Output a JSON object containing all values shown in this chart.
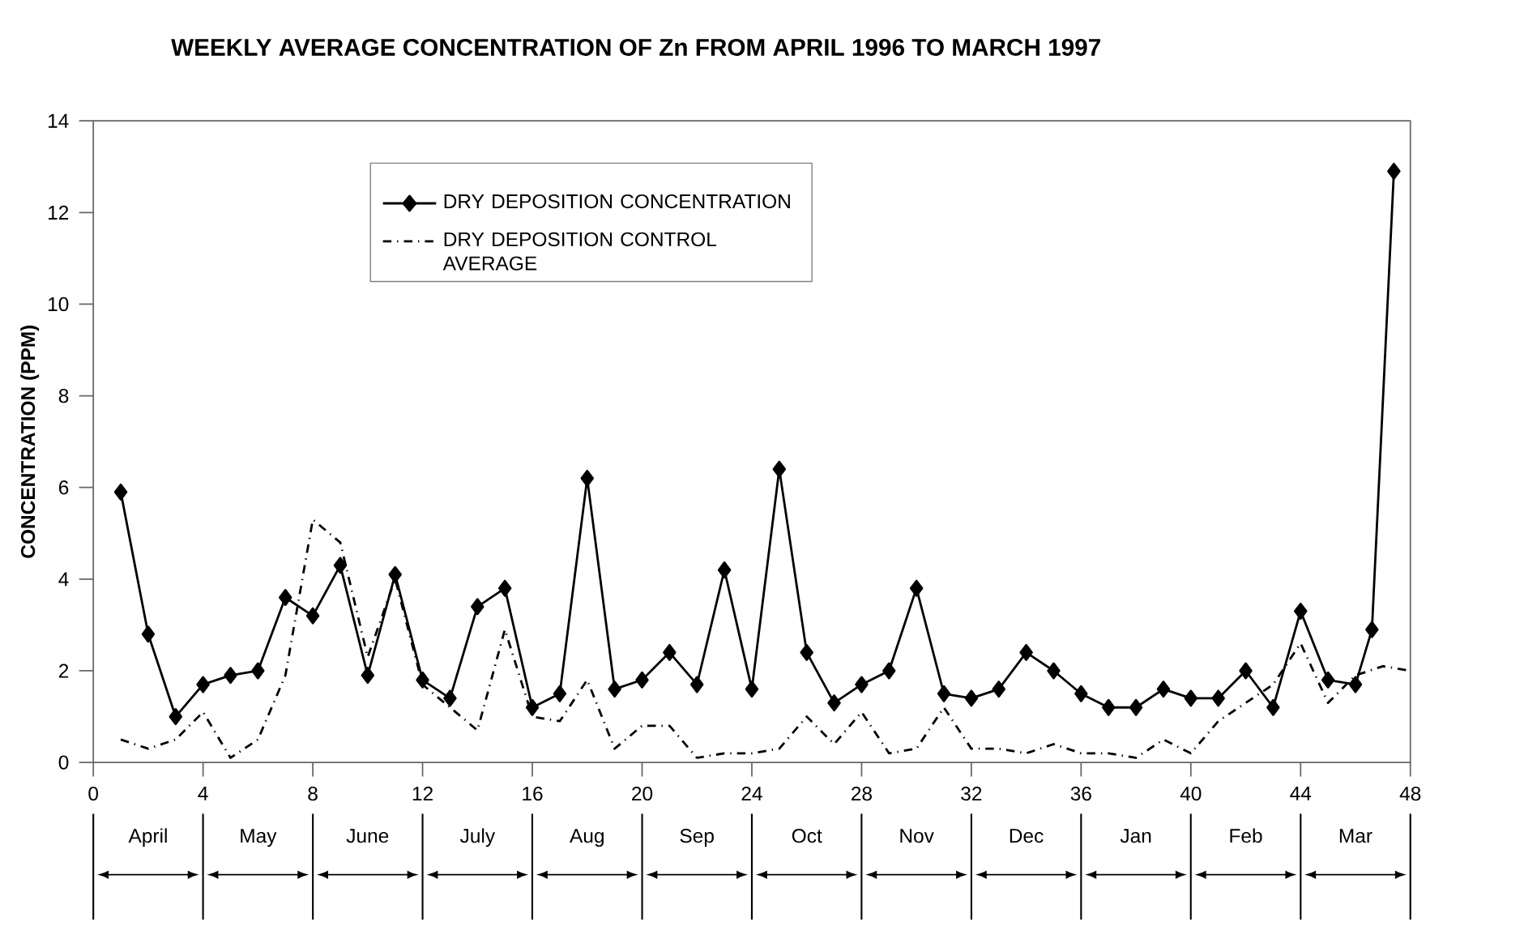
{
  "chart_data": {
    "type": "line",
    "title": "WEEKLY AVERAGE CONCENTRATION OF Zn FROM APRIL 1996 TO MARCH 1997",
    "ylabel": "CONCENTRATION (PPM)",
    "xlim": [
      0,
      48
    ],
    "xticks": [
      0,
      4,
      8,
      12,
      16,
      20,
      24,
      28,
      32,
      36,
      40,
      44,
      48
    ],
    "ylim": [
      0,
      14
    ],
    "yticks": [
      0,
      2,
      4,
      6,
      8,
      10,
      12,
      14
    ],
    "legend": "top",
    "grid": false,
    "series": [
      {
        "name": "DRY DEPOSITION CONCENTRATION",
        "color": "#000000",
        "marker": "diamond",
        "line_style": "solid",
        "x": [
          1,
          2,
          3,
          4,
          5,
          6,
          7,
          8,
          9,
          10,
          11,
          12,
          13,
          14,
          15,
          16,
          17,
          18,
          19,
          20,
          21,
          22,
          23,
          24,
          25,
          26,
          27,
          28,
          29,
          30,
          31,
          32,
          33,
          34,
          35,
          36,
          37,
          38,
          39,
          40,
          41,
          42,
          43,
          44,
          45,
          46,
          46.6,
          47.4
        ],
        "values": [
          5.9,
          2.8,
          1.0,
          1.7,
          1.9,
          2.0,
          3.6,
          3.2,
          4.3,
          1.9,
          4.1,
          1.8,
          1.4,
          3.4,
          3.8,
          1.2,
          1.5,
          6.2,
          1.6,
          1.8,
          2.4,
          1.7,
          4.2,
          1.6,
          6.4,
          2.4,
          1.3,
          1.7,
          2.0,
          3.8,
          1.5,
          1.4,
          1.6,
          2.4,
          2.0,
          1.5,
          1.2,
          1.2,
          1.6,
          1.4,
          1.4,
          2.0,
          1.2,
          3.3,
          1.8,
          1.7,
          2.9,
          12.9
        ]
      },
      {
        "name": "DRY DEPOSITION CONTROL AVERAGE",
        "color": "#000000",
        "line_style": "dashed",
        "x": [
          1,
          2,
          3,
          4,
          5,
          6,
          7,
          8,
          9,
          10,
          11,
          12,
          13,
          14,
          15,
          16,
          17,
          18,
          19,
          20,
          21,
          22,
          23,
          24,
          25,
          26,
          27,
          28,
          29,
          30,
          31,
          32,
          33,
          34,
          35,
          36,
          37,
          38,
          39,
          40,
          41,
          42,
          43,
          44,
          45,
          46,
          47,
          48
        ],
        "values": [
          0.5,
          0.3,
          0.5,
          1.1,
          0.1,
          0.5,
          1.9,
          5.3,
          4.8,
          2.3,
          4.0,
          1.7,
          1.2,
          0.7,
          2.9,
          1.0,
          0.9,
          1.8,
          0.3,
          0.8,
          0.8,
          0.1,
          0.2,
          0.2,
          0.3,
          1.0,
          0.4,
          1.1,
          0.2,
          0.3,
          1.2,
          0.3,
          0.3,
          0.2,
          0.4,
          0.2,
          0.2,
          0.1,
          0.5,
          0.2,
          0.9,
          1.3,
          1.7,
          2.6,
          1.3,
          1.9,
          2.1,
          2.0
        ]
      }
    ],
    "annotations": [
      "April",
      "May",
      "June",
      "July",
      "Aug",
      "Sep",
      "Oct",
      "Nov",
      "Dec",
      "Jan",
      "Feb",
      "Mar"
    ]
  }
}
